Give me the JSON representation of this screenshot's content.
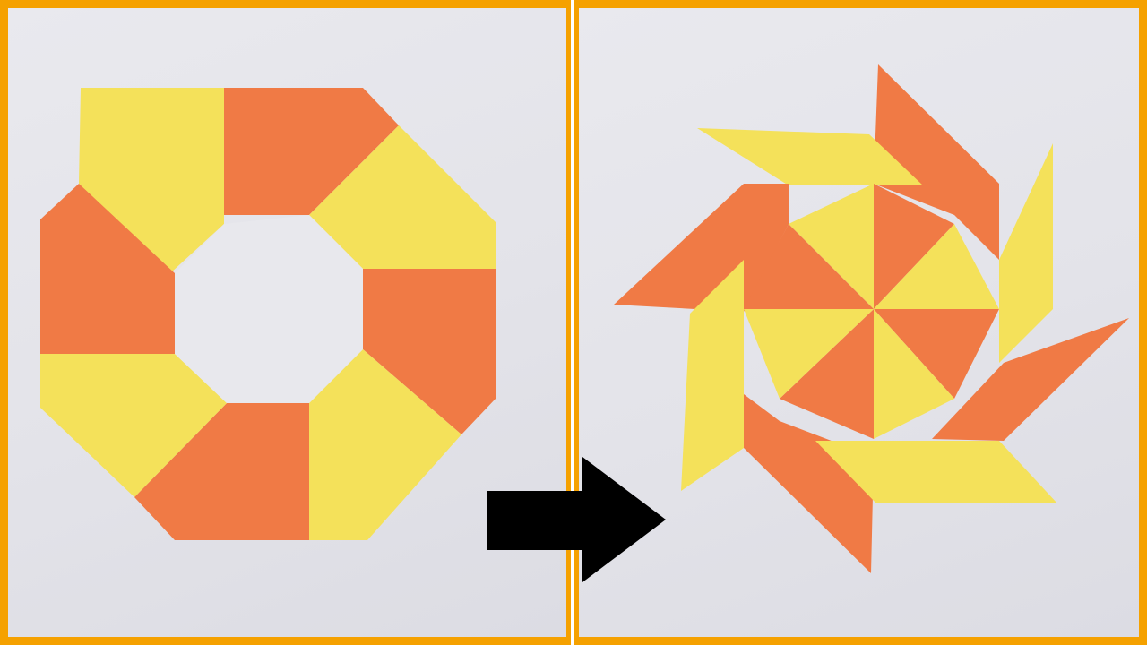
{
  "scene": {
    "description_free": true,
    "colors": {
      "frame": "#f5a100",
      "background": "#e6e6ec",
      "paper_orange": "#f07a45",
      "paper_yellow": "#f4e15a",
      "arrow": "#000000",
      "divider": "#ffffff"
    },
    "icons": {
      "left_object": "origami-ring-icon",
      "right_object": "origami-ninja-star-icon",
      "arrow": "right-arrow-icon"
    }
  }
}
